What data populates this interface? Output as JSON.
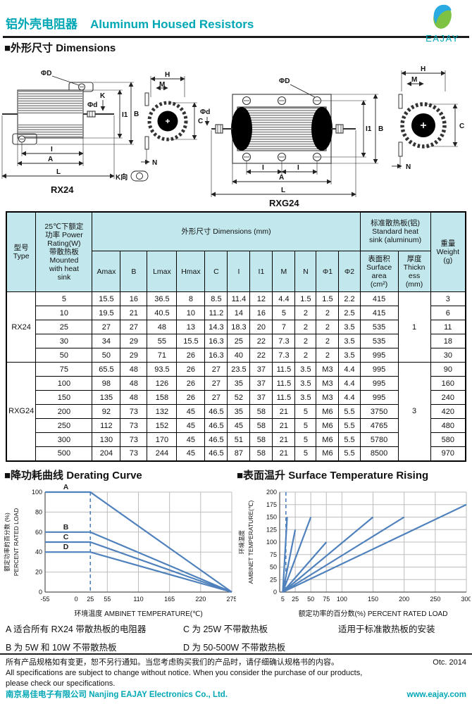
{
  "page": {
    "accent": "#00a7b5",
    "chart_blue": "#4f81bd",
    "table_header_bg": "#c2e8ee"
  },
  "header": {
    "title_zh": "铝外壳电阻器",
    "title_en": "Aluminum Housed Resistors",
    "logo_text": "EAJAY"
  },
  "sections": {
    "dimensions": "■外形尺寸  Dimensions",
    "derating": "■降功耗曲线  Derating Curve",
    "surface": "■表面温升  Surface Temperature Rising"
  },
  "drawings": {
    "rx24": "RX24",
    "rxg24": "RXG24",
    "lbl": {
      "phiD": "ΦD",
      "phid": "Φd",
      "K": "K",
      "I1": "I1",
      "B": "B",
      "I": "I",
      "A": "A",
      "L": "L",
      "H": "H",
      "M": "M",
      "C": "C",
      "N": "N",
      "kview": "K向"
    }
  },
  "table": {
    "type_header": "型号\nType",
    "power_header": "25℃下额定\n功率 Power\nRating(W)\n带散热板\nMounted\nwith heat\nsink",
    "dims_header": "外形尺寸  Dimensions (mm)",
    "heatsink_header": "标准散热板(铝)\nStandard heat\nsink (aluminum)",
    "surface_header": "表面积\nSurface\narea\n(cm²)",
    "thickness_header": "厚度\nThickn\ness\n(mm)",
    "weight_header": "重量\nWeight\n(g)",
    "dim_cols": [
      "Amax",
      "B",
      "Lmax",
      "Hmax",
      "C",
      "I",
      "I1",
      "M",
      "N",
      "Φ1",
      "Φ2"
    ],
    "groups": [
      {
        "type": "RX24",
        "thickness": "1",
        "rows": [
          [
            "5",
            "15.5",
            "16",
            "36.5",
            "8",
            "8.5",
            "11.4",
            "12",
            "4.4",
            "1.5",
            "1.5",
            "2.2",
            "415",
            "3"
          ],
          [
            "10",
            "19.5",
            "21",
            "40.5",
            "10",
            "11.2",
            "14",
            "16",
            "5",
            "2",
            "2",
            "2.5",
            "415",
            "6"
          ],
          [
            "25",
            "27",
            "27",
            "48",
            "13",
            "14.3",
            "18.3",
            "20",
            "7",
            "2",
            "2",
            "3.5",
            "535",
            "11"
          ],
          [
            "30",
            "34",
            "29",
            "55",
            "15.5",
            "16.3",
            "25",
            "22",
            "7.3",
            "2",
            "2",
            "3.5",
            "535",
            "18"
          ],
          [
            "50",
            "50",
            "29",
            "71",
            "26",
            "16.3",
            "40",
            "22",
            "7.3",
            "2",
            "2",
            "3.5",
            "995",
            "30"
          ]
        ]
      },
      {
        "type": "RXG24",
        "thickness": "3",
        "rows": [
          [
            "75",
            "65.5",
            "48",
            "93.5",
            "26",
            "27",
            "23.5",
            "37",
            "11.5",
            "3.5",
            "M3",
            "4.4",
            "995",
            "90"
          ],
          [
            "100",
            "98",
            "48",
            "126",
            "26",
            "27",
            "35",
            "37",
            "11.5",
            "3.5",
            "M3",
            "4.4",
            "995",
            "160"
          ],
          [
            "150",
            "135",
            "48",
            "158",
            "26",
            "27",
            "52",
            "37",
            "11.5",
            "3.5",
            "M3",
            "4.4",
            "995",
            "240"
          ],
          [
            "200",
            "92",
            "73",
            "132",
            "45",
            "46.5",
            "35",
            "58",
            "21",
            "5",
            "M6",
            "5.5",
            "3750",
            "420"
          ],
          [
            "250",
            "112",
            "73",
            "152",
            "45",
            "46.5",
            "45",
            "58",
            "21",
            "5",
            "M6",
            "5.5",
            "4765",
            "480"
          ],
          [
            "300",
            "130",
            "73",
            "170",
            "45",
            "46.5",
            "51",
            "58",
            "21",
            "5",
            "M6",
            "5.5",
            "5780",
            "580"
          ],
          [
            "500",
            "204",
            "73",
            "244",
            "45",
            "46.5",
            "87",
            "58",
            "21",
            "5",
            "M6",
            "5.5",
            "8500",
            "970"
          ]
        ]
      }
    ]
  },
  "chart_data": [
    {
      "type": "line",
      "name": "derating_curve",
      "title": "■降功耗曲线 Derating Curve",
      "xlabel": "环境温度  AMBINET TEMPERATURE(℃)",
      "ylabel_zh": "额定功率的百分数 (%)",
      "ylabel_en": "PERCENT RATED LOAD",
      "xlim": [
        -55,
        275
      ],
      "ylim": [
        0,
        100
      ],
      "xticks": [
        -55,
        0,
        25,
        55,
        110,
        165,
        220,
        275
      ],
      "yticks": [
        0,
        20,
        40,
        60,
        80,
        100
      ],
      "xgrid": [
        55,
        110,
        165,
        220,
        275
      ],
      "dashed_vline_x": 25,
      "grid": true,
      "legend_position": "inline-labels",
      "line_color": "#4f81bd",
      "series": [
        {
          "name": "A",
          "points": [
            [
              -55,
              100
            ],
            [
              25,
              100
            ],
            [
              275,
              0
            ]
          ]
        },
        {
          "name": "B",
          "points": [
            [
              -55,
              60
            ],
            [
              25,
              60
            ],
            [
              275,
              0
            ]
          ]
        },
        {
          "name": "C",
          "points": [
            [
              -55,
              50
            ],
            [
              25,
              50
            ],
            [
              275,
              0
            ]
          ]
        },
        {
          "name": "D",
          "points": [
            [
              -55,
              40
            ],
            [
              25,
              40
            ],
            [
              275,
              0
            ]
          ]
        }
      ]
    },
    {
      "type": "line",
      "name": "surface_temperature_rising",
      "title": "■表面温升 Surface Temperature Rising",
      "xlabel": "额定功率的百分数(%)  PERCENT RATED LOAD",
      "ylabel_zh": "环境温度",
      "ylabel_en": "AMBINET TEMPERATURE(℃)",
      "xlim": [
        0,
        300
      ],
      "ylim": [
        0,
        200
      ],
      "xticks": [
        5,
        25,
        50,
        75,
        100,
        150,
        200,
        250,
        300
      ],
      "yticks": [
        0,
        25,
        50,
        75,
        100,
        125,
        150,
        175,
        200
      ],
      "xgrid": [
        25,
        50,
        75,
        100,
        150,
        200,
        250,
        300
      ],
      "dashed_vline_x": 10,
      "grid": true,
      "legend_position": "none",
      "line_color": "#4f81bd",
      "series": [
        {
          "points": [
            [
              5,
              0
            ],
            [
              12,
              150
            ]
          ]
        },
        {
          "points": [
            [
              5,
              0
            ],
            [
              25,
              125
            ]
          ]
        },
        {
          "points": [
            [
              5,
              0
            ],
            [
              50,
              150
            ]
          ]
        },
        {
          "points": [
            [
              5,
              0
            ],
            [
              75,
              100
            ]
          ]
        },
        {
          "points": [
            [
              5,
              0
            ],
            [
              150,
              150
            ]
          ]
        },
        {
          "points": [
            [
              5,
              0
            ],
            [
              200,
              150
            ]
          ]
        },
        {
          "points": [
            [
              5,
              0
            ],
            [
              300,
              175
            ]
          ]
        }
      ]
    }
  ],
  "notes": {
    "a": "A 适合所有 RX24 带散热板的电阻器",
    "b": "B 为 5W 和 10W 不带散热板",
    "c": "C 为 25W 不带散热板",
    "d": "D 为 50-500W 不带散热板",
    "right": "适用于标准散热板的安装"
  },
  "footer": {
    "notice_zh": "所有产品规格如有变更，恕不另行通知。当您考虑购买我们的产品时，请仔细确认规格书的内容。",
    "date": "Otc. 2014",
    "notice_en1": "All specifications are subject to change without notice. When you consider the purchase of our products,",
    "notice_en2": "please check our specifications.",
    "company": "南京易佳电子有限公司  Nanjing EAJAY Electronics Co., Ltd.",
    "website": "www.eajay.com"
  }
}
